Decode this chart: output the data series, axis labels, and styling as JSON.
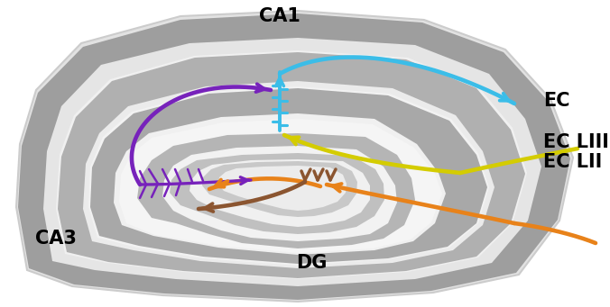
{
  "bg_color": "#ffffff",
  "color_outer_shell": "#e0e0e0",
  "color_gray_band": "#9a9a9a",
  "color_inner_light": "#efefef",
  "color_inner_gray": "#b8b8b8",
  "color_dg_gray": "#aaaaaa",
  "color_white": "#f5f5f5",
  "label_CA1": "CA1",
  "label_CA3": "CA3",
  "label_DG": "DG",
  "label_EC": "EC",
  "label_ECLIII": "EC LIII",
  "label_ECLII": "EC LII",
  "color_blue": "#3bbde8",
  "color_purple": "#7722bb",
  "color_orange": "#e8821a",
  "color_yellow": "#d4cc00",
  "color_brown": "#8B5530",
  "arrow_lw": 2.8,
  "figsize": [
    6.76,
    3.41
  ],
  "dpi": 100
}
